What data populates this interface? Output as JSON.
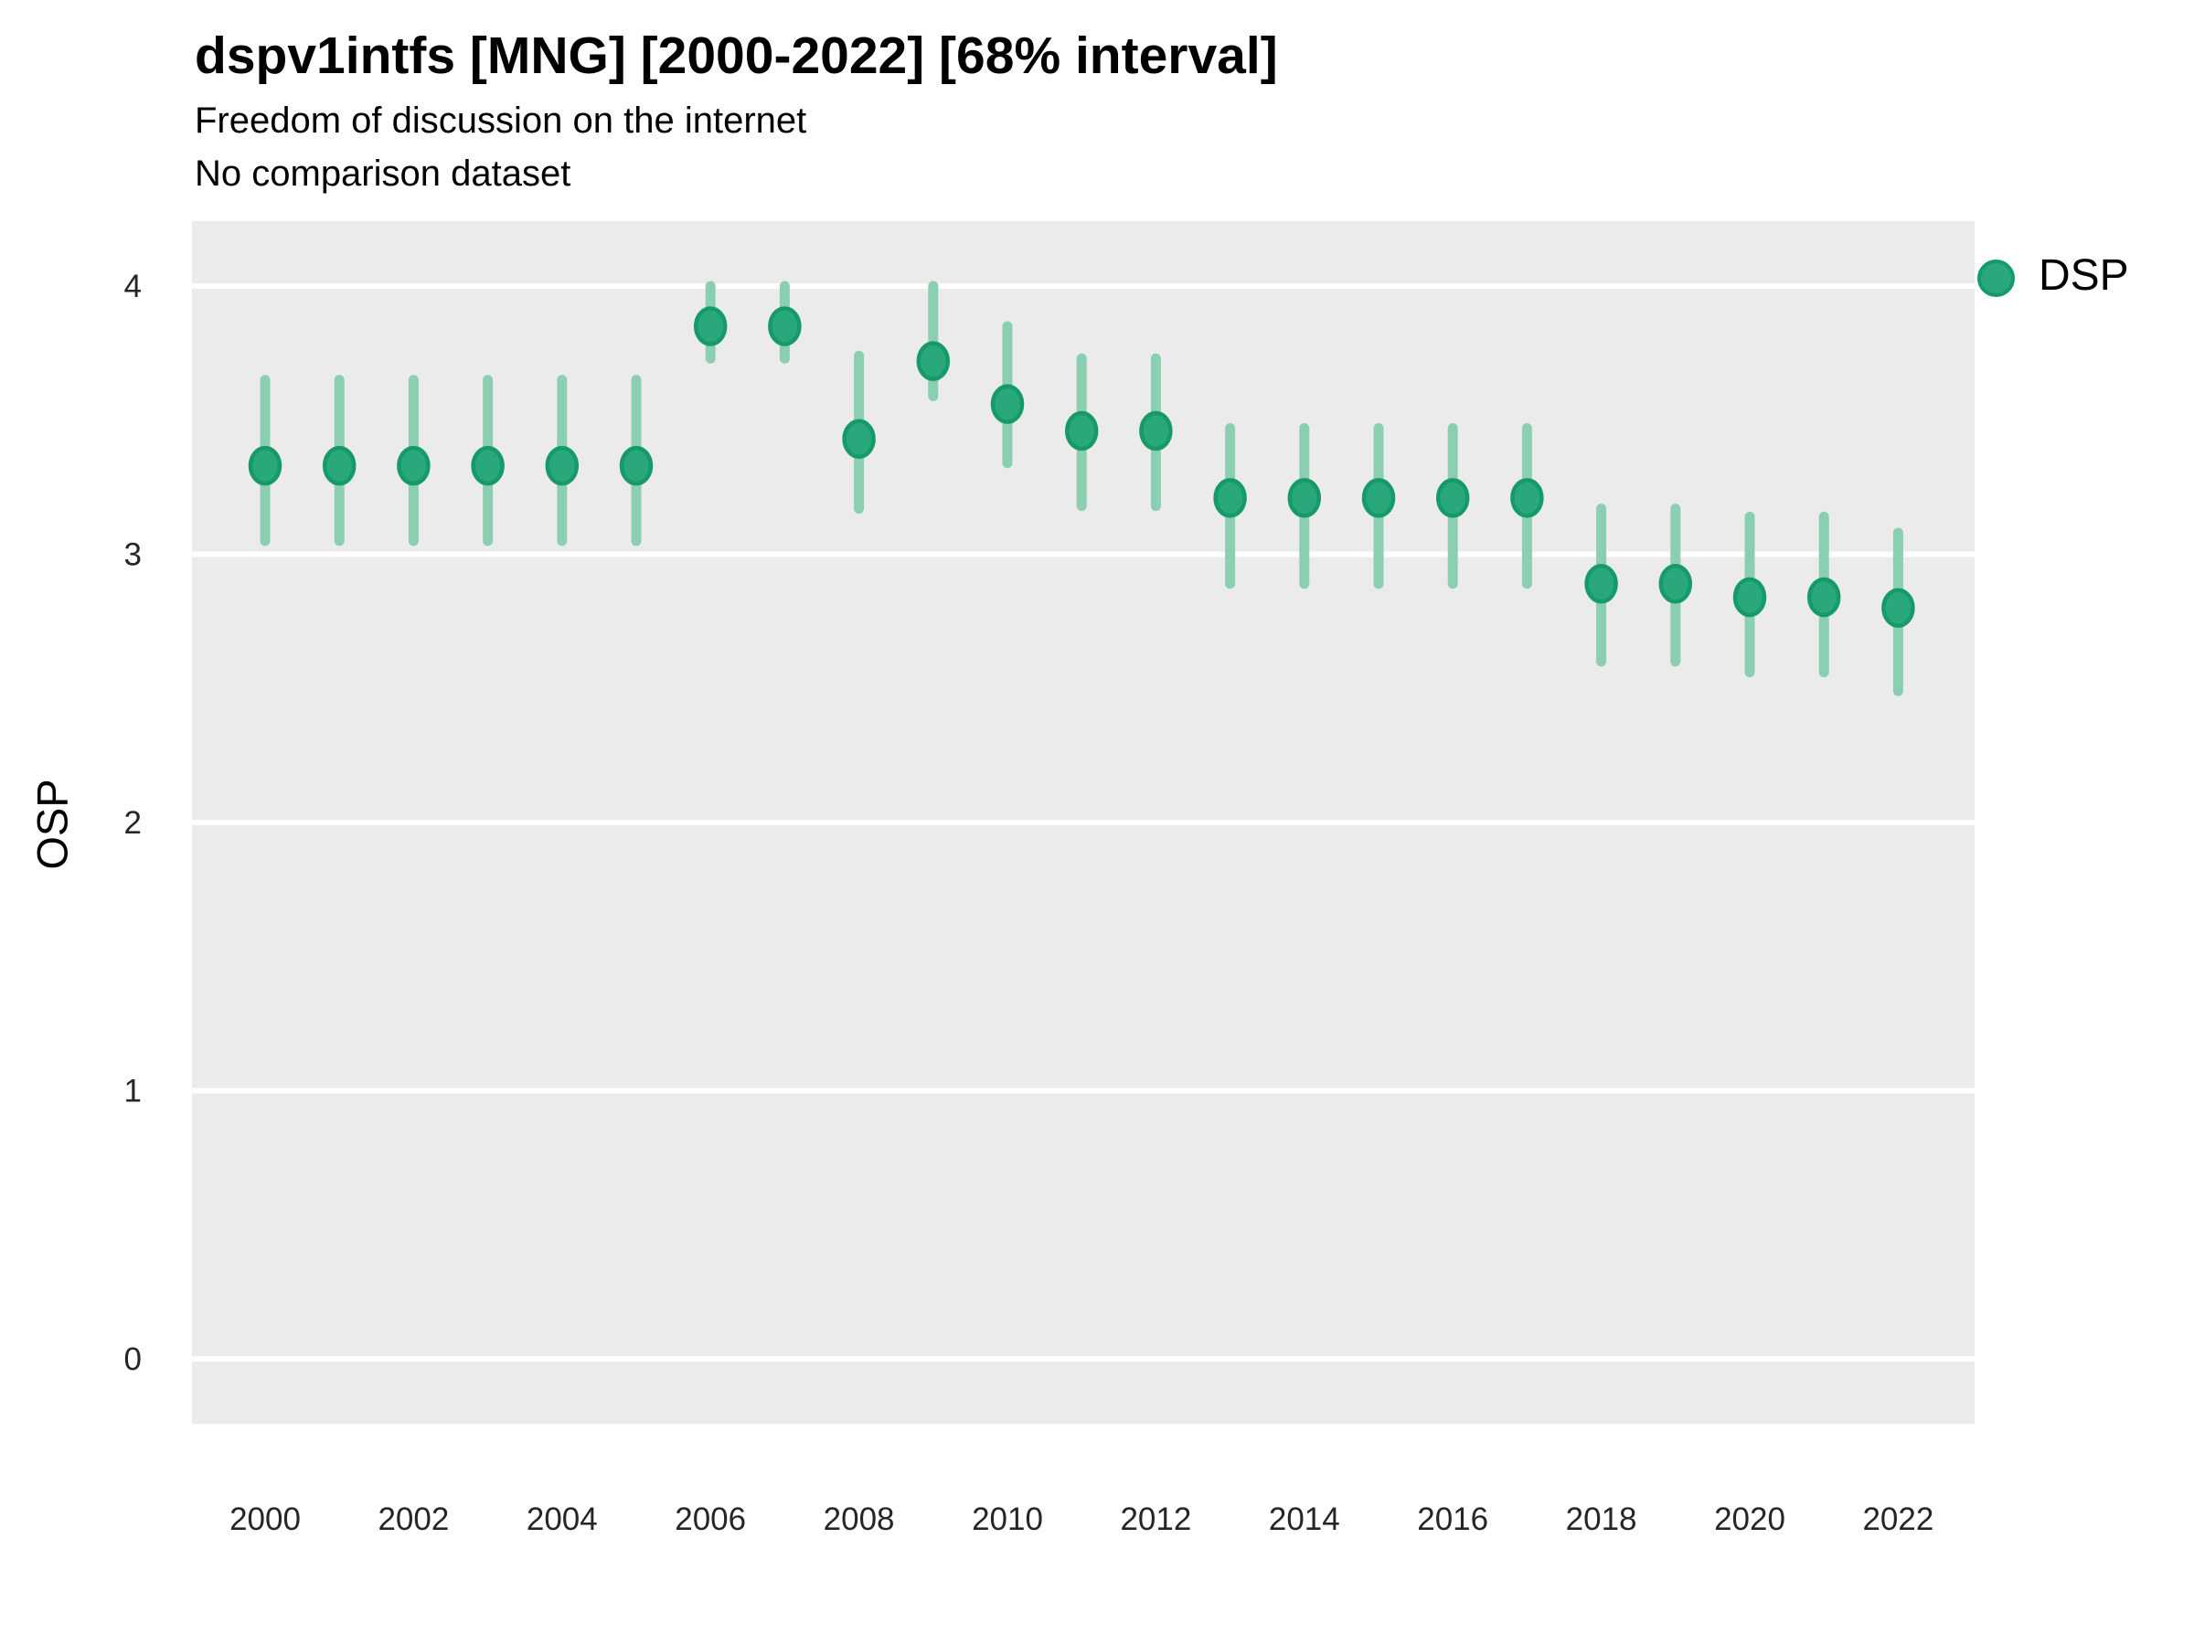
{
  "header": {
    "title": "dspv1intfs [MNG] [2000-2022] [68% interval]",
    "subtitle": "Freedom of discussion on the internet",
    "note": "No comparison dataset"
  },
  "legend": {
    "position": "right",
    "items": [
      {
        "label": "DSP",
        "color": "#29a87c"
      }
    ]
  },
  "chart_data": {
    "type": "scatter",
    "title": "dspv1intfs [MNG] [2000-2022] [68% interval]",
    "subtitle": "Freedom of discussion on the internet",
    "note": "No comparison dataset",
    "interval_label": "68% interval",
    "xlabel": "",
    "ylabel": "OSP",
    "ylim": [
      0,
      4
    ],
    "y_ticks": [
      0,
      1,
      2,
      3,
      4
    ],
    "x_ticks": [
      2000,
      2002,
      2004,
      2006,
      2008,
      2010,
      2012,
      2014,
      2016,
      2018,
      2020,
      2022
    ],
    "x": [
      2000,
      2001,
      2002,
      2003,
      2004,
      2005,
      2006,
      2007,
      2008,
      2009,
      2010,
      2011,
      2012,
      2013,
      2014,
      2015,
      2016,
      2017,
      2018,
      2019,
      2020,
      2021,
      2022
    ],
    "series": [
      {
        "name": "DSP",
        "values": [
          3.33,
          3.33,
          3.33,
          3.33,
          3.33,
          3.33,
          3.85,
          3.85,
          3.43,
          3.72,
          3.56,
          3.46,
          3.46,
          3.21,
          3.21,
          3.21,
          3.21,
          3.21,
          2.89,
          2.89,
          2.84,
          2.84,
          2.8
        ],
        "interval_low": [
          3.05,
          3.05,
          3.05,
          3.05,
          3.05,
          3.05,
          3.73,
          3.73,
          3.17,
          3.59,
          3.34,
          3.18,
          3.18,
          2.89,
          2.89,
          2.89,
          2.89,
          2.89,
          2.6,
          2.6,
          2.56,
          2.56,
          2.49
        ],
        "interval_high": [
          3.65,
          3.65,
          3.65,
          3.65,
          3.65,
          3.65,
          4.0,
          4.0,
          3.74,
          4.0,
          3.85,
          3.73,
          3.73,
          3.47,
          3.47,
          3.47,
          3.47,
          3.47,
          3.17,
          3.17,
          3.14,
          3.14,
          3.08
        ]
      }
    ],
    "grid": "horizontal-major-only",
    "legend_position": "right",
    "panel_bg": "#ebebeb",
    "gridline_color": "#ffffff",
    "point_color": "#29a87c",
    "point_stroke_color": "#169a6a",
    "errorbar_color": "#8bcfb3",
    "axis_text_color": "#262626"
  }
}
